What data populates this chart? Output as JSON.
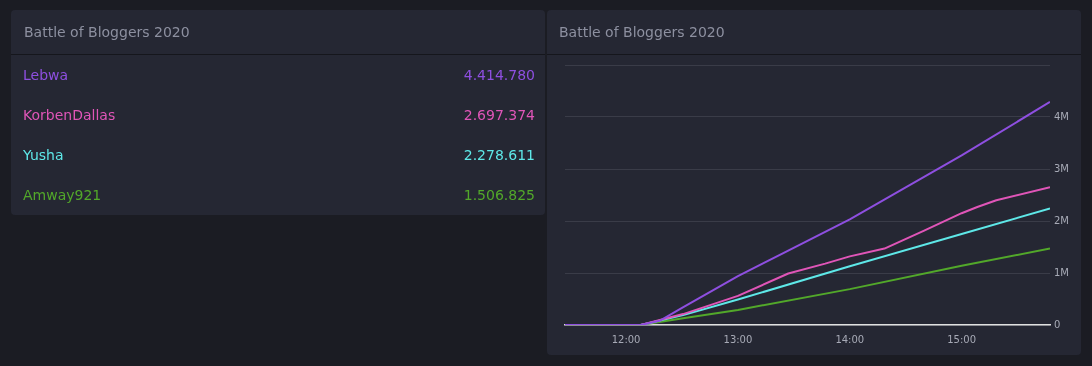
{
  "chart_data": [
    {
      "type": "other",
      "title": "Battle of Bloggers 2020",
      "categories": [
        "Lebwa",
        "KorbenDallas",
        "Yusha",
        "Amway921"
      ],
      "value_labels": [
        "4.414.780",
        "2.697.374",
        "2.278.611",
        "1.506.825"
      ]
    },
    {
      "type": "line",
      "title": "Battle of Bloggers 2020",
      "xlim": [
        11.454,
        15.79
      ],
      "xticks": [
        {
          "value": 12,
          "label": "12:00"
        },
        {
          "value": 13,
          "label": "13:00"
        },
        {
          "value": 14,
          "label": "14:00"
        },
        {
          "value": 15,
          "label": "15:00"
        }
      ],
      "ylim": [
        0,
        5000000
      ],
      "yticks": [
        {
          "value": 0,
          "label": "0"
        },
        {
          "value": 1000000,
          "label": "1M"
        },
        {
          "value": 2000000,
          "label": "2M"
        },
        {
          "value": 3000000,
          "label": "3M"
        },
        {
          "value": 4000000,
          "label": "4M"
        },
        {
          "value": 5000000,
          "label": null
        }
      ],
      "grid": "y",
      "legend": false,
      "marker": "none",
      "line_style": "solid",
      "series": [
        {
          "color": "#8e4fe0",
          "x": [
            11.454,
            12.13,
            12.3,
            12.5,
            13,
            14,
            15,
            15.79
          ],
          "values": [
            0,
            0,
            80000,
            330000,
            940000,
            2030000,
            3260000,
            4290000
          ]
        },
        {
          "color": "#e055b8",
          "x": [
            11.454,
            12.13,
            12.51,
            13,
            13.45,
            13.78,
            14,
            14.31,
            14.66,
            15,
            15.14,
            15.31,
            15.79
          ],
          "values": [
            0,
            0,
            210000,
            560000,
            990000,
            1180000,
            1320000,
            1470000,
            1810000,
            2150000,
            2270000,
            2400000,
            2650000
          ]
        },
        {
          "color": "#5ee8e8",
          "x": [
            11.454,
            12.13,
            12.51,
            13,
            14,
            15,
            15.79
          ],
          "values": [
            0,
            0,
            190000,
            490000,
            1130000,
            1750000,
            2240000
          ]
        },
        {
          "color": "#52a82a",
          "x": [
            11.454,
            12.13,
            12.51,
            13,
            14,
            15,
            15.79
          ],
          "values": [
            0,
            0,
            130000,
            290000,
            690000,
            1140000,
            1470000
          ]
        }
      ]
    }
  ]
}
